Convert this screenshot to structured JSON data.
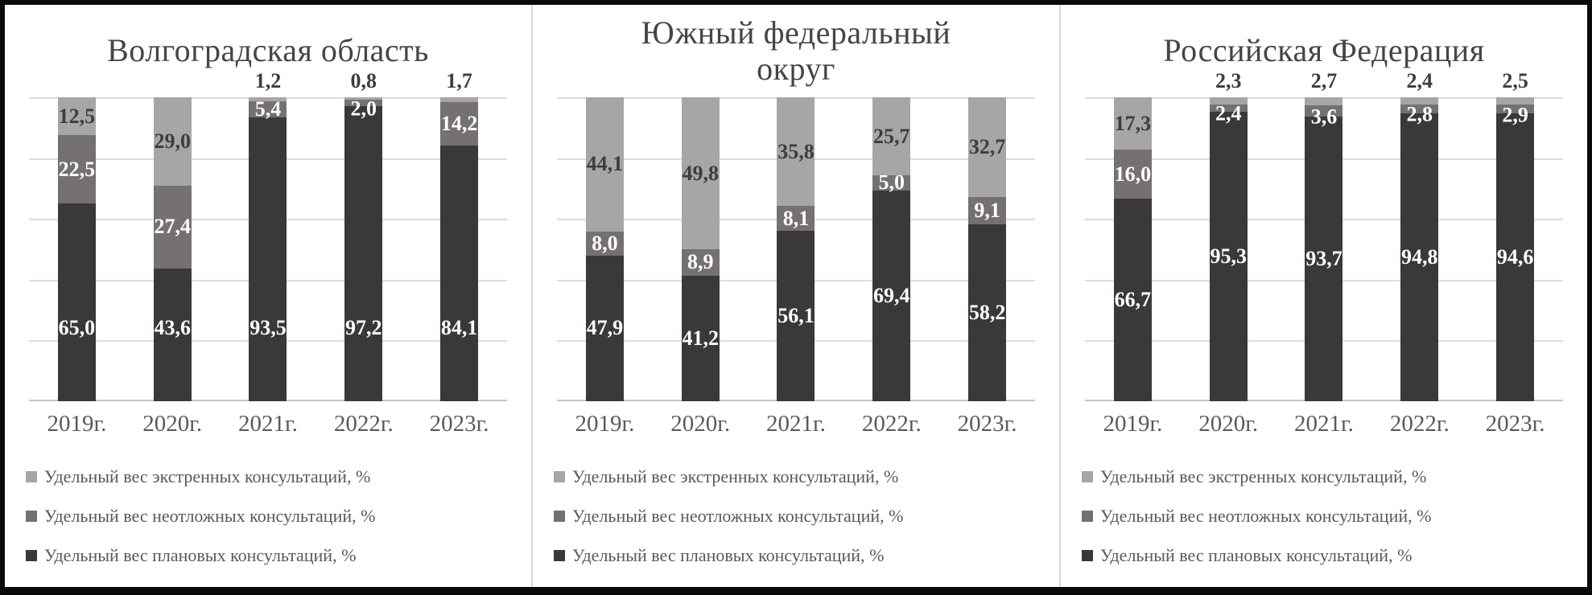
{
  "chart_data": [
    {
      "type": "bar",
      "stacked": true,
      "title": "Волгоградская область",
      "title_lines": [
        "Волгоградская область"
      ],
      "categories": [
        "2019г.",
        "2020г.",
        "2021г.",
        "2022г.",
        "2023г."
      ],
      "series": [
        {
          "key": "planned",
          "name": "Удельный вес плановых консультаций, %",
          "color": "#3b3838",
          "values": [
            65.0,
            43.6,
            93.5,
            97.2,
            84.1
          ]
        },
        {
          "key": "urgent",
          "name": "Удельный вес неотложных консультаций, %",
          "color": "#767171",
          "values": [
            22.5,
            27.4,
            5.4,
            2.0,
            14.2
          ]
        },
        {
          "key": "emergency",
          "name": "Удельный вес экстренных консультаций, %",
          "color": "#a6a6a6",
          "values": [
            12.5,
            29.0,
            1.2,
            0.8,
            1.7
          ]
        }
      ],
      "ylim": [
        0,
        100
      ],
      "grid": true,
      "gridline_step": 20,
      "gridline_color": "#dcdcdc",
      "axis_color": "#c6c6c6",
      "legend_position": "bottom-left",
      "dark_label_mode": "near-bottom",
      "decimal_separator": ","
    },
    {
      "type": "bar",
      "stacked": true,
      "title": "Южный федеральный округ",
      "title_lines": [
        "Южный федеральный",
        "округ"
      ],
      "categories": [
        "2019г.",
        "2020г.",
        "2021г.",
        "2022г.",
        "2023г."
      ],
      "series": [
        {
          "key": "planned",
          "name": "Удельный вес плановых консультаций, %",
          "color": "#3b3838",
          "values": [
            47.9,
            41.2,
            56.1,
            69.4,
            58.2
          ]
        },
        {
          "key": "urgent",
          "name": "Удельный вес неотложных консультаций, %",
          "color": "#767171",
          "values": [
            8.0,
            8.9,
            8.1,
            5.0,
            9.1
          ]
        },
        {
          "key": "emergency",
          "name": "Удельный вес экстренных консультаций, %",
          "color": "#a6a6a6",
          "values": [
            44.1,
            49.8,
            35.8,
            25.7,
            32.7
          ]
        }
      ],
      "ylim": [
        0,
        100
      ],
      "grid": true,
      "gridline_step": 20,
      "gridline_color": "#dcdcdc",
      "axis_color": "#c6c6c6",
      "legend_position": "bottom-left",
      "dark_label_mode": "center",
      "decimal_separator": ","
    },
    {
      "type": "bar",
      "stacked": true,
      "title": "Российская Федерация",
      "title_lines": [
        "Российская Федерация"
      ],
      "categories": [
        "2019г.",
        "2020г.",
        "2021г.",
        "2022г.",
        "2023г."
      ],
      "series": [
        {
          "key": "planned",
          "name": "Удельный вес плановых консультаций, %",
          "color": "#3b3838",
          "values": [
            66.7,
            95.3,
            93.7,
            94.8,
            94.6
          ]
        },
        {
          "key": "urgent",
          "name": "Удельный вес неотложных консультаций, %",
          "color": "#767171",
          "values": [
            16.0,
            2.4,
            3.6,
            2.8,
            2.9
          ]
        },
        {
          "key": "emergency",
          "name": "Удельный вес экстренных консультаций, %",
          "color": "#a6a6a6",
          "values": [
            17.3,
            2.3,
            2.7,
            2.4,
            2.5
          ]
        }
      ],
      "ylim": [
        0,
        100
      ],
      "grid": true,
      "gridline_step": 20,
      "gridline_color": "#dcdcdc",
      "axis_color": "#c6c6c6",
      "legend_position": "bottom-left",
      "dark_label_mode": "center",
      "decimal_separator": ","
    }
  ]
}
